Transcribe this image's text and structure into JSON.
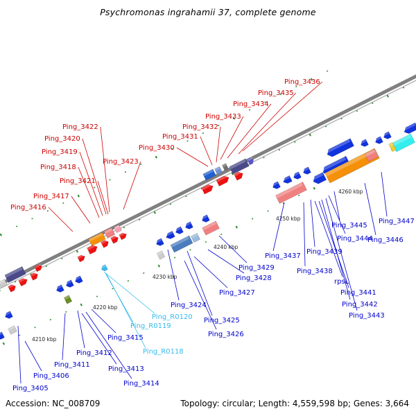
{
  "title": "Psychromonas ingrahamii 37, complete genome",
  "footer": {
    "accession": "Accession: NC_008709",
    "summary": "Topology: circular; Length: 4,559,598 bp; Genes: 3,664"
  },
  "colors": {
    "forward_label": "#cc0000",
    "reverse_label": "#0000cc",
    "rna_label": "#33bbee",
    "backbone": "#808080",
    "tick": "#2e8b2e"
  },
  "scale_labels": [
    "4210 kbp",
    "4220 kbp",
    "4230 kbp",
    "4240 kbp",
    "4250 kbp",
    "4260 kbp"
  ],
  "forward_genes": [
    "Ping_3416",
    "Ping_3417",
    "Ping_3418",
    "Ping_3419",
    "Ping_3420",
    "Ping_3421",
    "Ping_3422",
    "Ping_3423",
    "Ping_3430",
    "Ping_3431",
    "Ping_3432",
    "Ping_3433",
    "Ping_3434",
    "Ping_3435",
    "Ping_3436"
  ],
  "reverse_genes": [
    "Ping_3405",
    "Ping_3406",
    "Ping_3411",
    "Ping_3412",
    "Ping_3413",
    "Ping_3414",
    "Ping_3415",
    "Ping_3424",
    "Ping_3425",
    "Ping_3426",
    "Ping_3427",
    "Ping_3428",
    "Ping_3429",
    "Ping_3437",
    "Ping_3438",
    "Ping_3439",
    "rpsL",
    "Ping_3441",
    "Ping_3442",
    "Ping_3443",
    "Ping_3444",
    "Ping_3445",
    "Ping_3446",
    "Ping_3447"
  ],
  "rna_genes": [
    "Ping_R0120",
    "Ping_R0119",
    "Ping_R0118"
  ]
}
